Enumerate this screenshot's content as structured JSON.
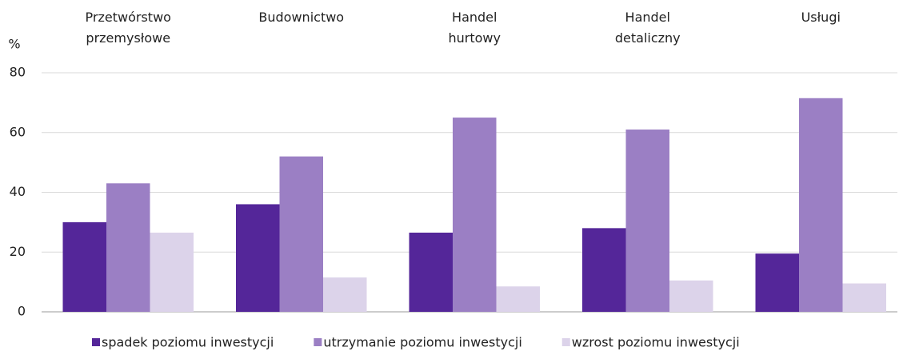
{
  "chart_data": {
    "type": "bar",
    "y_label": "%",
    "categories": [
      "Przetwórstwo\nprzemysłowe",
      "Budownictwo",
      "Handel\nhurtowy",
      "Handel\ndetaliczny",
      "Usługi"
    ],
    "series": [
      {
        "name": "spadek poziomu inwestycji",
        "color": "#542699",
        "values": [
          30,
          36,
          26.5,
          28,
          19.5
        ]
      },
      {
        "name": "utrzymanie poziomu inwestycji",
        "color": "#9b7fc4",
        "values": [
          43,
          52,
          65,
          61,
          71.5
        ]
      },
      {
        "name": "wzrost poziomu inwestycji",
        "color": "#dcd3ea",
        "values": [
          26.5,
          11.5,
          8.5,
          10.5,
          9.5
        ]
      }
    ],
    "ylim": [
      0,
      80
    ],
    "yticks": [
      0,
      20,
      40,
      60,
      80
    ],
    "grid": true,
    "legend": "bottom"
  }
}
